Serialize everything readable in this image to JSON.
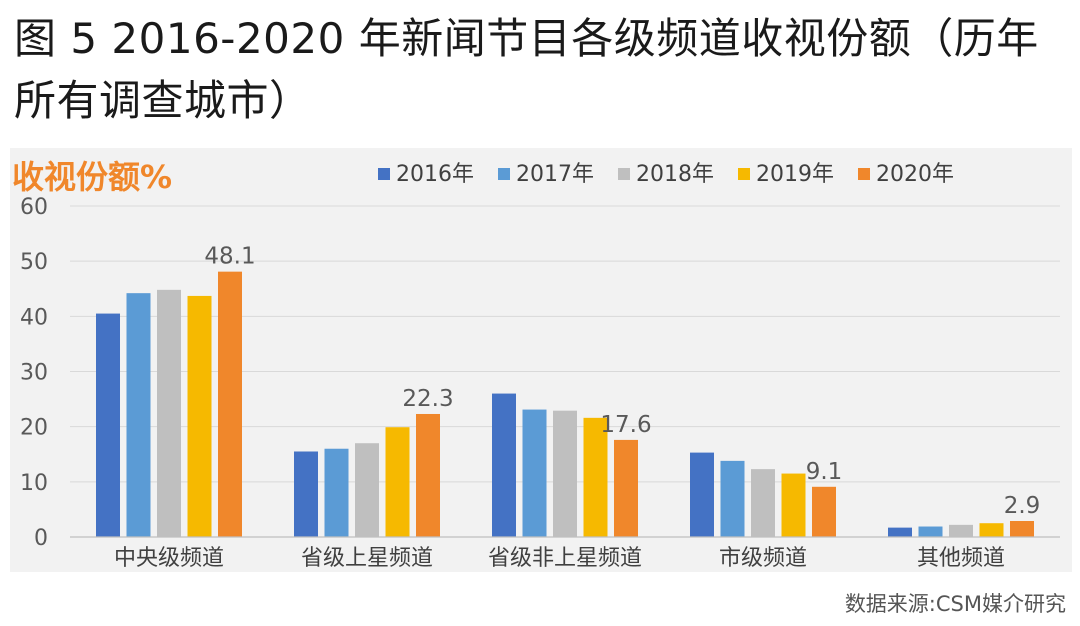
{
  "figure": {
    "title": "图 5 2016-2020 年新闻节目各级频道收视份额（历年所有调查城市）",
    "source": "数据来源:CSM媒介研究"
  },
  "colors": {
    "accent_label": "#f0872b",
    "series": [
      "#4472c4",
      "#5b9bd5",
      "#bfbfbf",
      "#f6b900",
      "#f0872b"
    ]
  },
  "chart_data": {
    "type": "bar",
    "ylabel": "收视份额%",
    "ylim": [
      0,
      60
    ],
    "yticks": [
      0,
      10,
      20,
      30,
      40,
      50,
      60
    ],
    "grid": true,
    "legend_position": "top",
    "categories": [
      "中央级频道",
      "省级上星频道",
      "省级非上星频道",
      "市级频道",
      "其他频道"
    ],
    "series": [
      {
        "name": "2016年",
        "values": [
          40.5,
          15.5,
          26.0,
          15.3,
          1.7
        ]
      },
      {
        "name": "2017年",
        "values": [
          44.2,
          16.0,
          23.1,
          13.8,
          1.9
        ]
      },
      {
        "name": "2018年",
        "values": [
          44.8,
          17.0,
          22.9,
          12.3,
          2.2
        ]
      },
      {
        "name": "2019年",
        "values": [
          43.7,
          19.9,
          21.6,
          11.5,
          2.5
        ]
      },
      {
        "name": "2020年",
        "values": [
          48.1,
          22.3,
          17.6,
          9.1,
          2.9
        ]
      }
    ],
    "data_labels": [
      "48.1",
      "22.3",
      "17.6",
      "9.1",
      "2.9"
    ]
  }
}
